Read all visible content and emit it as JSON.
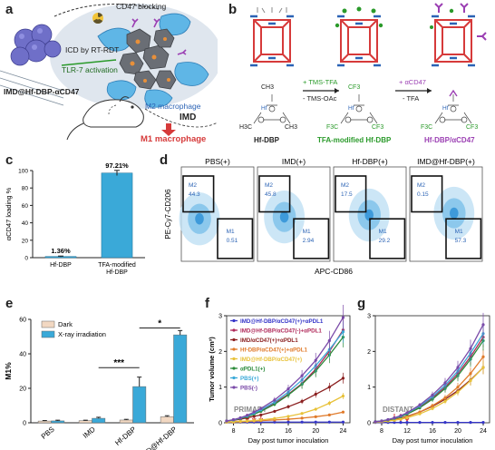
{
  "panels": {
    "a": {
      "letter": "a",
      "labels": {
        "cd47_blocking": "CD47 blocking",
        "icd": "ICD by RT-RDT",
        "tlr7": "TLR-7 activation",
        "nanoparticle": "IMD@Hf-DBP-αCD47",
        "m2": "M2 macrophage",
        "imd": "IMD",
        "m1": "M1 macrophage"
      },
      "colors": {
        "m2": "#2b63b5",
        "m1": "#d63a3a"
      }
    },
    "b": {
      "letter": "b",
      "step1": {
        "top": "+ TMS-TFA",
        "bottom": "- TMS-OAc"
      },
      "step2": {
        "top": "+ αCD47",
        "bottom": "- TFA"
      },
      "structures": [
        {
          "name": "Hf-DBP",
          "top_group": "CH3",
          "side_groups": [
            "H3C",
            "CH3"
          ]
        },
        {
          "name": "TFA-modified Hf-DBP",
          "top_group": "CF3",
          "side_groups": [
            "F3C",
            "CF3"
          ]
        },
        {
          "name": "Hf-DBP/αCD47",
          "top_group": "",
          "side_groups": [
            "F3C",
            "CF3"
          ]
        }
      ],
      "hf_label": "Hf",
      "o_label": "O",
      "colors": {
        "tfa": "#2a9a2a",
        "acd47": "#9b3fb3"
      }
    },
    "c": {
      "letter": "c",
      "chart_data": {
        "type": "bar",
        "categories": [
          "Hf-DBP",
          "TFA-modified Hf-DBP"
        ],
        "category_lines": [
          [
            "Hf-DBP"
          ],
          [
            "TFA-modified",
            "Hf-DBP"
          ]
        ],
        "values": [
          1.36,
          97.21
        ],
        "data_labels": [
          "1.36%",
          "97.21%"
        ],
        "error": [
          0.5,
          3
        ],
        "ylabel": "αCD47 loading %",
        "ylim": [
          0,
          100
        ],
        "yticks": [
          0,
          20,
          40,
          60,
          80,
          100
        ],
        "color": "#3aa9d8"
      }
    },
    "d": {
      "letter": "d",
      "xlabel": "APC-CD86",
      "ylabel": "PE-Cy7-CD206",
      "plots": [
        {
          "title": "PBS(+)",
          "m2_label": "M2",
          "m2": "44.3",
          "m1_label": "M1",
          "m1": "0.51"
        },
        {
          "title": "IMD(+)",
          "m2_label": "M2",
          "m2": "45.8",
          "m1_label": "M1",
          "m1": "2.94"
        },
        {
          "title": "Hf-DBP(+)",
          "m2_label": "M2",
          "m2": "17.5",
          "m1_label": "M1",
          "m1": "29.2"
        },
        {
          "title": "IMD@Hf-DBP(+)",
          "m2_label": "M2",
          "m2": "0.15",
          "m1_label": "M1",
          "m1": "57.3"
        }
      ]
    },
    "e": {
      "letter": "e",
      "chart_data": {
        "type": "bar",
        "categories": [
          "PBS",
          "IMD",
          "Hf-DBP",
          "IMD@Hf-DBP"
        ],
        "series": [
          {
            "name": "Dark",
            "values": [
              1.0,
              1.2,
              1.6,
              3.5
            ],
            "error": [
              0.3,
              0.3,
              0.4,
              0.6
            ],
            "color": "#f2d8c2"
          },
          {
            "name": "X-ray irradiation",
            "values": [
              1.1,
              2.6,
              21.0,
              51.0
            ],
            "error": [
              0.4,
              0.6,
              5.5,
              2.5
            ],
            "color": "#3aa9d8"
          }
        ],
        "ylabel": "M1%",
        "ylim": [
          0,
          60
        ],
        "yticks": [
          0,
          20,
          40,
          60
        ],
        "significance": [
          {
            "label": "***",
            "from": 1,
            "to": 2,
            "y": 32
          },
          {
            "label": "*",
            "from": 2,
            "to": 3,
            "y": 55
          }
        ],
        "legend": "top-left"
      }
    },
    "f": {
      "letter": "f",
      "chart_data": {
        "type": "line",
        "note": "PRIMARY",
        "xlabel": "Day post tumor inoculation",
        "ylabel": "Tumor volume (cm³)",
        "xlim": [
          7,
          25
        ],
        "ylim": [
          0,
          3
        ],
        "xticks": [
          8,
          12,
          16,
          20,
          24
        ],
        "yticks": [
          0,
          1,
          2,
          3
        ],
        "x": [
          7,
          8,
          9,
          10,
          11,
          12,
          14,
          16,
          18,
          20,
          22,
          24
        ],
        "series": [
          {
            "name": "IMD@Hf-DBP/αCD47(+)+αPDL1",
            "color": "#3535c8",
            "values": [
              0.02,
              0.02,
              0.02,
              0.02,
              0.02,
              0.02,
              0.02,
              0.02,
              0.02,
              0.02,
              0.02,
              0.02
            ]
          },
          {
            "name": "IMD@Hf-DBP/αCD47(-)+αPDL1",
            "color": "#b02a5a",
            "values": [
              0.05,
              0.08,
              0.12,
              0.18,
              0.26,
              0.35,
              0.55,
              0.8,
              1.1,
              1.5,
              2.0,
              2.6
            ]
          },
          {
            "name": "IMD/αCD47(+)+αPDL1",
            "color": "#8b2020",
            "values": [
              0.05,
              0.07,
              0.1,
              0.14,
              0.18,
              0.22,
              0.32,
              0.45,
              0.6,
              0.8,
              1.0,
              1.25
            ]
          },
          {
            "name": "Hf-DBP/αCD47(+)+αPDL1",
            "color": "#e07a2a",
            "values": [
              0.02,
              0.02,
              0.03,
              0.04,
              0.05,
              0.06,
              0.08,
              0.1,
              0.13,
              0.17,
              0.22,
              0.3
            ]
          },
          {
            "name": "IMD@Hf-DBP/αCD47(+)",
            "color": "#e8c23a",
            "values": [
              0.02,
              0.03,
              0.04,
              0.05,
              0.06,
              0.08,
              0.12,
              0.18,
              0.26,
              0.38,
              0.55,
              0.75
            ]
          },
          {
            "name": "αPDL1(+)",
            "color": "#2a8a3a",
            "values": [
              0.05,
              0.08,
              0.12,
              0.17,
              0.24,
              0.32,
              0.52,
              0.78,
              1.08,
              1.45,
              1.9,
              2.4
            ]
          },
          {
            "name": "PBS(+)",
            "color": "#3aa9d8",
            "values": [
              0.05,
              0.08,
              0.13,
              0.19,
              0.27,
              0.36,
              0.58,
              0.86,
              1.2,
              1.6,
              2.05,
              2.55
            ]
          },
          {
            "name": "PBS(-)",
            "color": "#7a4aa8",
            "values": [
              0.05,
              0.09,
              0.14,
              0.21,
              0.3,
              0.4,
              0.64,
              0.95,
              1.32,
              1.75,
              2.3,
              2.95
            ]
          }
        ],
        "legend": "top-left"
      }
    },
    "g": {
      "letter": "g",
      "chart_data": {
        "type": "line",
        "note": "DISTANT",
        "xlabel": "Day post tumor inoculation",
        "ylabel": "",
        "xlim": [
          7,
          25
        ],
        "ylim": [
          0,
          3
        ],
        "xticks": [
          8,
          12,
          16,
          20,
          24
        ],
        "yticks": [
          0,
          1,
          2,
          3
        ],
        "x": [
          7,
          8,
          9,
          10,
          11,
          12,
          14,
          16,
          18,
          20,
          22,
          24
        ],
        "series": [
          {
            "name": "IMD@Hf-DBP/αCD47(+)+αPDL1",
            "color": "#3535c8",
            "values": [
              0.01,
              0.01,
              0.01,
              0.01,
              0.01,
              0.01,
              0.01,
              0.01,
              0.01,
              0.01,
              0.01,
              0.01
            ]
          },
          {
            "name": "IMD@Hf-DBP/αCD47(-)+αPDL1",
            "color": "#b02a5a",
            "values": [
              0.03,
              0.05,
              0.08,
              0.12,
              0.18,
              0.26,
              0.45,
              0.7,
              1.0,
              1.38,
              1.85,
              2.4
            ]
          },
          {
            "name": "IMD/αCD47(+)+αPDL1",
            "color": "#8b2020",
            "values": [
              0.03,
              0.04,
              0.06,
              0.09,
              0.13,
              0.18,
              0.3,
              0.46,
              0.66,
              0.9,
              1.2,
              1.55
            ]
          },
          {
            "name": "Hf-DBP/αCD47(+)+αPDL1",
            "color": "#e07a2a",
            "values": [
              0.02,
              0.03,
              0.05,
              0.08,
              0.12,
              0.17,
              0.3,
              0.48,
              0.7,
              1.0,
              1.38,
              1.85
            ]
          },
          {
            "name": "IMD@Hf-DBP/αCD47(+)",
            "color": "#e8c23a",
            "values": [
              0.02,
              0.03,
              0.05,
              0.07,
              0.1,
              0.14,
              0.25,
              0.4,
              0.6,
              0.86,
              1.18,
              1.55
            ]
          },
          {
            "name": "αPDL1(+)",
            "color": "#2a8a3a",
            "values": [
              0.03,
              0.05,
              0.08,
              0.12,
              0.17,
              0.24,
              0.42,
              0.66,
              0.96,
              1.32,
              1.78,
              2.3
            ]
          },
          {
            "name": "PBS(+)",
            "color": "#3aa9d8",
            "values": [
              0.03,
              0.05,
              0.09,
              0.13,
              0.19,
              0.27,
              0.47,
              0.73,
              1.05,
              1.45,
              1.95,
              2.5
            ]
          },
          {
            "name": "PBS(-)",
            "color": "#7a4aa8",
            "values": [
              0.03,
              0.05,
              0.09,
              0.14,
              0.2,
              0.28,
              0.5,
              0.78,
              1.12,
              1.55,
              2.08,
              2.75
            ]
          }
        ]
      }
    }
  }
}
